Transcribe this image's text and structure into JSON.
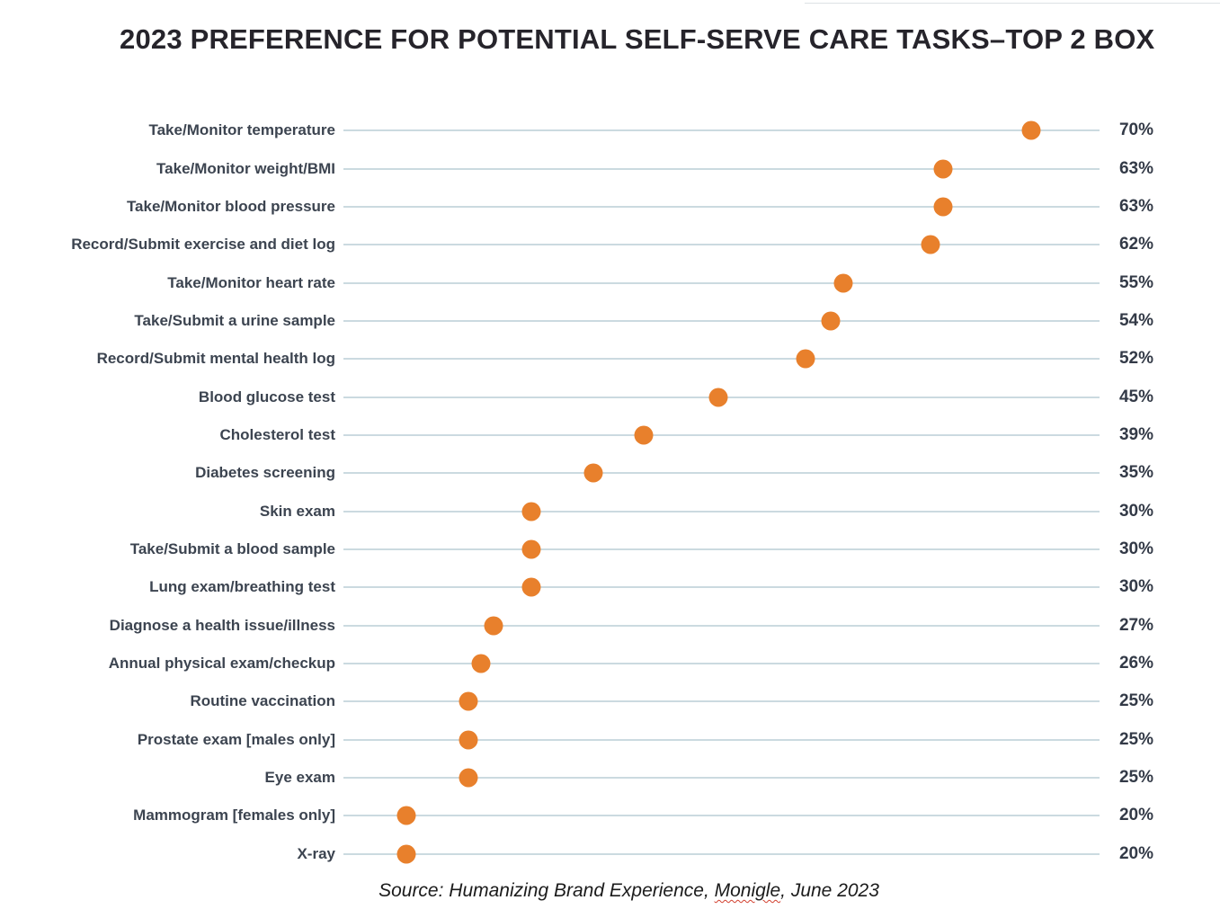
{
  "title": "2023 PREFERENCE FOR POTENTIAL SELF-SERVE CARE TASKS–TOP 2 BOX",
  "footer": {
    "prefix": "Source: Humanizing Brand Experience, ",
    "publisher": "Monigle",
    "suffix": ", June 2023"
  },
  "colors": {
    "dot": "#e8802c",
    "leader_line": "#cbdae0",
    "label_text": "#3c4450",
    "title_text": "#26242b"
  },
  "chart_data": {
    "type": "scatter",
    "subtype": "dot-plot",
    "title": "2023 PREFERENCE FOR POTENTIAL SELF-SERVE CARE TASKS–TOP 2 BOX",
    "unit": "%",
    "value_suffix": "%",
    "orientation": "horizontal",
    "grid": false,
    "legend": "none",
    "x_range_percent": [
      15,
      75.5
    ],
    "categories": [
      "Take/Monitor temperature",
      "Take/Monitor weight/BMI",
      "Take/Monitor blood pressure",
      "Record/Submit exercise and diet log",
      "Take/Monitor heart rate",
      "Take/Submit a urine sample",
      "Record/Submit mental health log",
      "Blood glucose test",
      "Cholesterol test",
      "Diabetes screening",
      "Skin exam",
      "Take/Submit a blood sample",
      "Lung exam/breathing test",
      "Diagnose a health issue/illness",
      "Annual physical exam/checkup",
      "Routine vaccination",
      "Prostate exam [males only]",
      "Eye exam",
      "Mammogram [females only]",
      "X-ray"
    ],
    "values": [
      70,
      63,
      63,
      62,
      55,
      54,
      52,
      45,
      39,
      35,
      30,
      30,
      30,
      27,
      26,
      25,
      25,
      25,
      20,
      20
    ]
  }
}
